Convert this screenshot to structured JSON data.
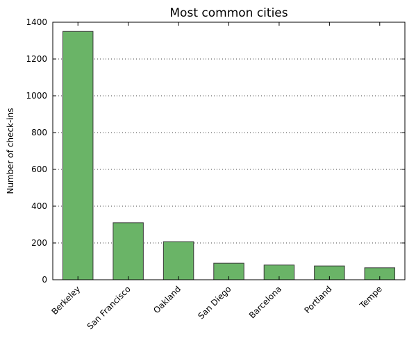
{
  "chart_data": {
    "type": "bar",
    "title": "Most common cities",
    "xlabel": "",
    "ylabel": "Number of check-ins",
    "categories": [
      "Berkeley",
      "San Francisco",
      "Oakland",
      "San Diego",
      "Barcelona",
      "Portland",
      "Tempe"
    ],
    "values": [
      1350,
      310,
      207,
      90,
      80,
      75,
      65
    ],
    "ylim": [
      0,
      1400
    ],
    "yticks": [
      0,
      200,
      400,
      600,
      800,
      1000,
      1200,
      1400
    ],
    "grid": "horizontal dotted",
    "bar_color": "#6ab467",
    "bar_edge_color": "#3a3a3a"
  }
}
